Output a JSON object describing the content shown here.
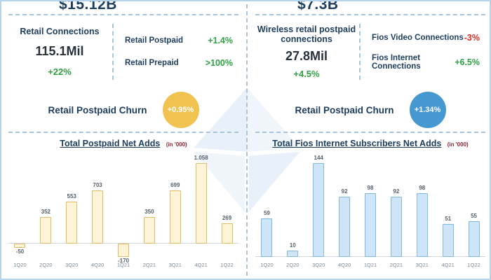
{
  "colors": {
    "green": "#2f9e44",
    "red": "#d93025",
    "navy": "#1c3d5c",
    "yellow_circle": "#f0c24f",
    "blue_circle": "#4598d0"
  },
  "left": {
    "top_value": "$15.12B",
    "connections": {
      "title": "Retail Connections",
      "value": "115.1Mil",
      "change": "+22%"
    },
    "metrics": [
      {
        "label": "Retail Postpaid",
        "value": "+1.4%"
      },
      {
        "label": "Retail Prepaid",
        "value": ">100%"
      }
    ],
    "churn": {
      "label": "Retail Postpaid Churn",
      "value": "+0.95%"
    }
  },
  "right": {
    "top_value": "$7.3B",
    "connections": {
      "title": "Wireless retail postpaid connections",
      "value": "27.8Mil",
      "change": "+4.5%"
    },
    "metrics": [
      {
        "label": "Fios Video Connections",
        "value": "-3%"
      },
      {
        "label": "Fios Internet Connections",
        "value": "+6.5%"
      }
    ],
    "churn": {
      "label": "Retail Postpaid Churn",
      "value": "+1.34%"
    }
  },
  "chart_data": [
    {
      "type": "bar",
      "title": "Total Postpaid Net Adds",
      "unit_note": "(in '000)",
      "categories": [
        "1Q20",
        "2Q20",
        "3Q20",
        "4Q20",
        "1Q21",
        "2Q21",
        "3Q21",
        "4Q21",
        "1Q22"
      ],
      "values": [
        -50,
        352,
        553,
        703,
        -170,
        350,
        699,
        1058,
        269
      ],
      "labels": [
        "-50",
        "352",
        "553",
        "703",
        "-170",
        "350",
        "699",
        "1.058",
        "269"
      ],
      "ylim": [
        -200,
        1100
      ],
      "grid": false,
      "bar_fill": "#fdf4d7",
      "bar_border": "#e3bc66"
    },
    {
      "type": "bar",
      "title": "Total Fios Internet Subscribers Net Adds",
      "unit_note": "(in '000)",
      "categories": [
        "1Q20",
        "2Q20",
        "3Q20",
        "4Q20",
        "1Q21",
        "2Q21",
        "3Q21",
        "4Q21",
        "1Q22"
      ],
      "values": [
        59,
        10,
        144,
        92,
        98,
        92,
        98,
        51,
        55
      ],
      "labels": [
        "59",
        "10",
        "144",
        "92",
        "98",
        "92",
        "98",
        "51",
        "55"
      ],
      "ylim": [
        0,
        160
      ],
      "grid": false,
      "bar_fill": "#cde5f7",
      "bar_border": "#82b9dd"
    }
  ]
}
